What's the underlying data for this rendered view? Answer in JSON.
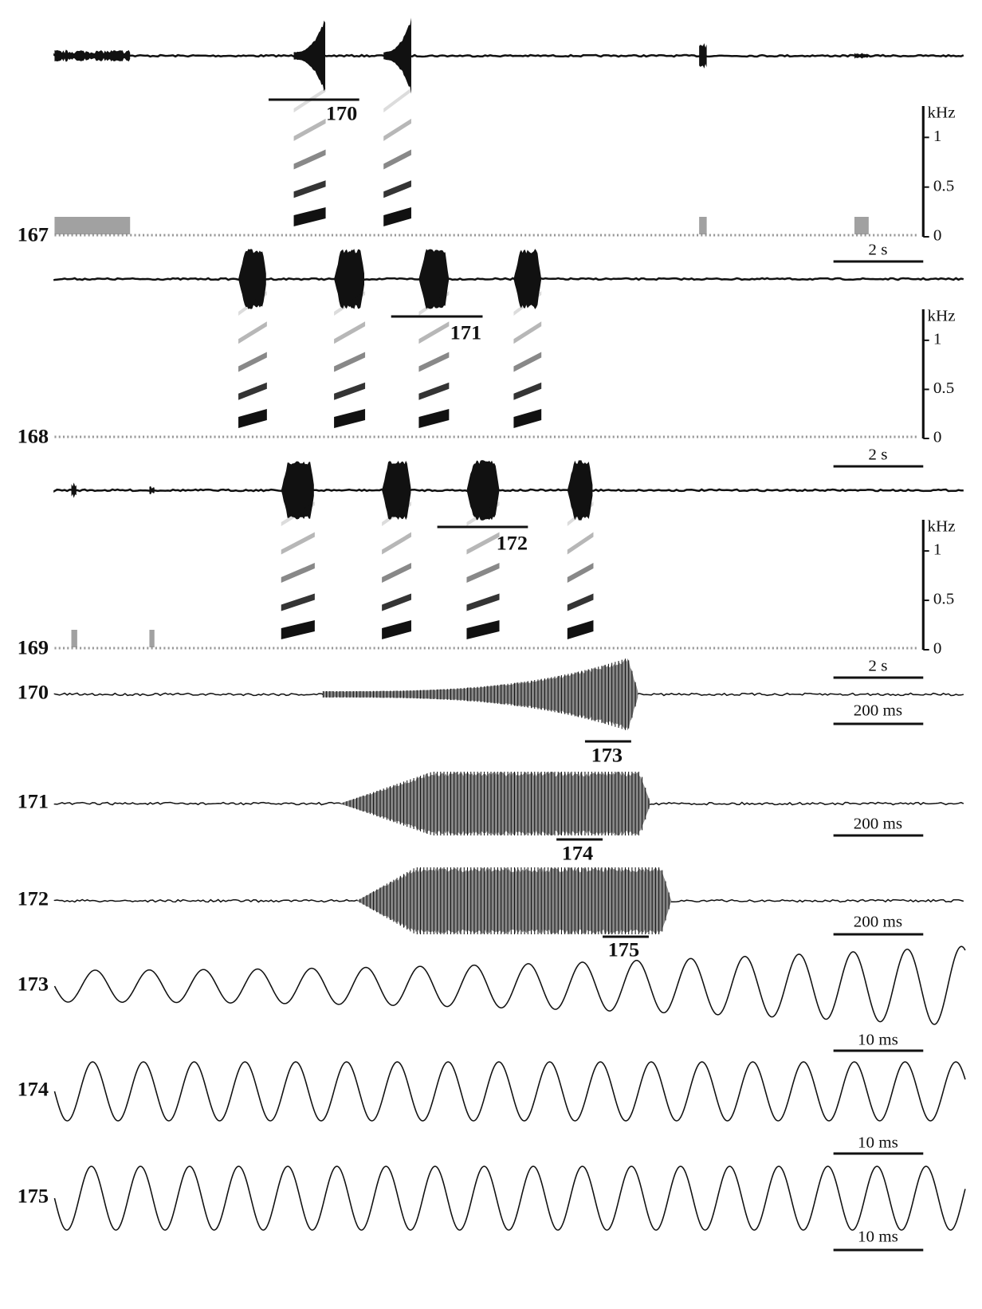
{
  "spectrogram_panels": [
    {
      "label": "167",
      "selection_label": "170",
      "frequency_axis": {
        "unit": "kHz",
        "ticks": [
          "1",
          "0.5",
          "0"
        ]
      },
      "scale_bar": "2 s"
    },
    {
      "label": "168",
      "selection_label": "171",
      "frequency_axis": {
        "unit": "kHz",
        "ticks": [
          "1",
          "0.5",
          "0"
        ]
      },
      "scale_bar": "2 s"
    },
    {
      "label": "169",
      "selection_label": "172",
      "frequency_axis": {
        "unit": "kHz",
        "ticks": [
          "1",
          "0.5",
          "0"
        ]
      },
      "scale_bar": "2 s"
    }
  ],
  "oscillogram_panels": [
    {
      "label": "170",
      "scale_bar": "200 ms",
      "selection_label": "173"
    },
    {
      "label": "171",
      "scale_bar": "200 ms",
      "selection_label": "174"
    },
    {
      "label": "172",
      "scale_bar": "200 ms",
      "selection_label": "175"
    }
  ],
  "waveform_panels": [
    {
      "label": "173",
      "scale_bar": "10 ms"
    },
    {
      "label": "174",
      "scale_bar": "10 ms"
    },
    {
      "label": "175",
      "scale_bar": "10 ms"
    }
  ]
}
